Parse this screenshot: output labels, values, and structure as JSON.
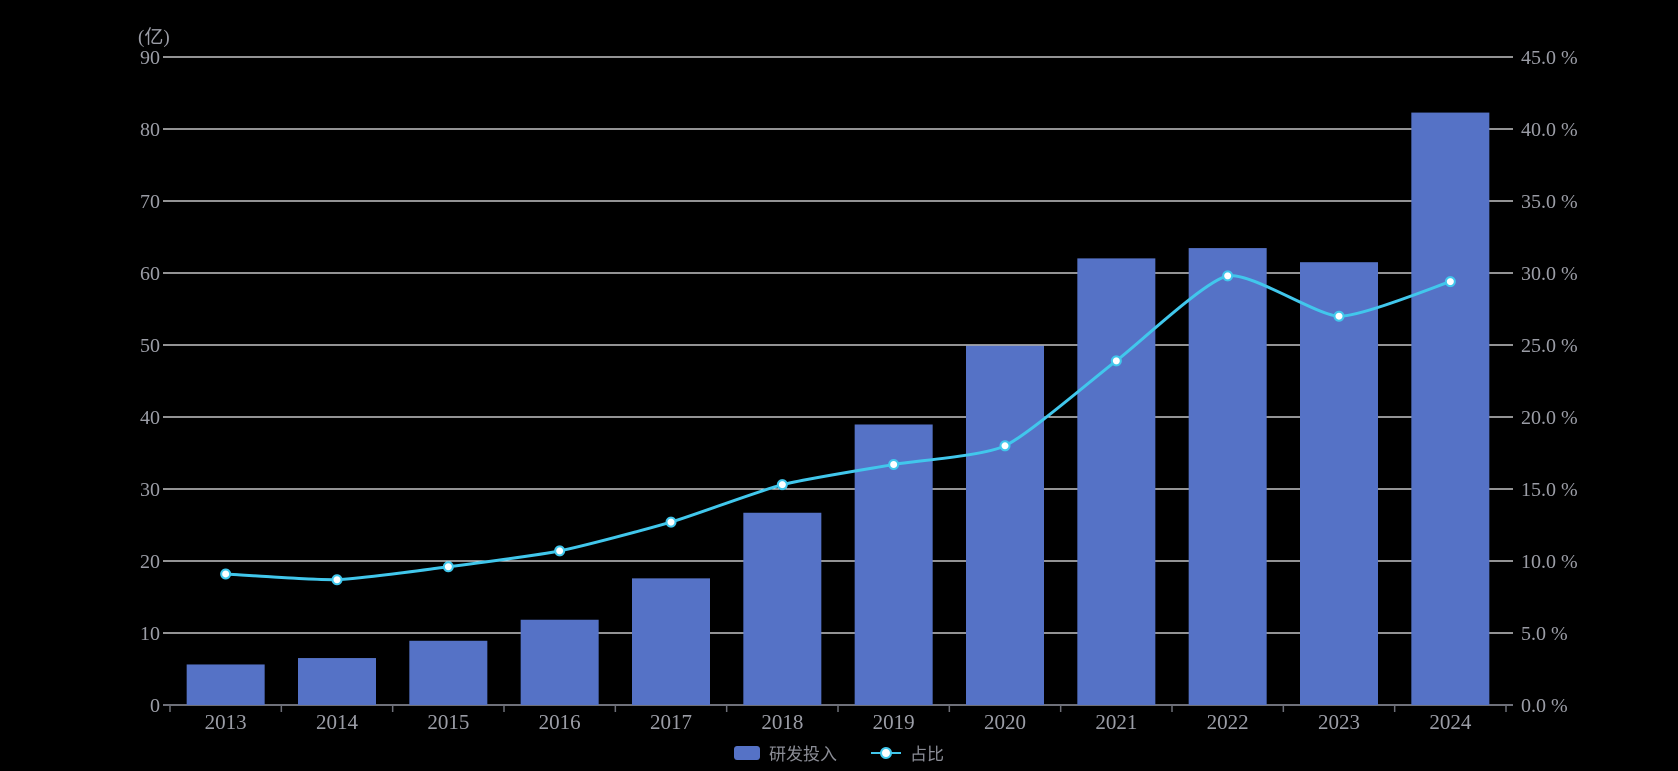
{
  "chart_data": {
    "type": "bar",
    "subtype": "bar-line-dual-axis",
    "categories": [
      "2013",
      "2014",
      "2015",
      "2016",
      "2017",
      "2018",
      "2019",
      "2020",
      "2021",
      "2022",
      "2023",
      "2024"
    ],
    "series": [
      {
        "name": "研发投入",
        "type": "bar",
        "axis": "left",
        "unit": "亿",
        "values": [
          5.63,
          6.52,
          8.92,
          11.84,
          17.59,
          26.7,
          38.96,
          49.89,
          62.03,
          63.46,
          61.5,
          82.28
        ]
      },
      {
        "name": "占比",
        "type": "line",
        "axis": "right",
        "unit": "%",
        "values": [
          9.1,
          8.7,
          9.6,
          10.7,
          12.7,
          15.3,
          16.7,
          18.0,
          23.9,
          29.8,
          27.0,
          29.4
        ]
      }
    ],
    "left_axis": {
      "label": "(亿)",
      "min": 0,
      "max": 90,
      "step": 10,
      "ticks": [
        "0",
        "10",
        "20",
        "30",
        "40",
        "50",
        "60",
        "70",
        "80",
        "90"
      ]
    },
    "right_axis": {
      "min": 0,
      "max": 45,
      "step": 5,
      "ticks": [
        "0.0 %",
        "5.0 %",
        "10.0 %",
        "15.0 %",
        "20.0 %",
        "25.0 %",
        "30.0 %",
        "35.0 %",
        "40.0 %",
        "45.0 %"
      ]
    },
    "title": "",
    "xlabel": "",
    "ylabel": "(亿)",
    "grid": true,
    "legend_position": "bottom-center"
  },
  "legend": {
    "bar_label": "研发投入",
    "line_label": "占比"
  },
  "colors": {
    "background": "#000000",
    "bar": "#5572c6",
    "line": "#41c7ec",
    "marker_fill": "#ffffff",
    "grid_line": "#ebebec",
    "axis_line": "#6e7079",
    "tick_text": "#9b9da6",
    "legend_text": "#8c8e97"
  }
}
